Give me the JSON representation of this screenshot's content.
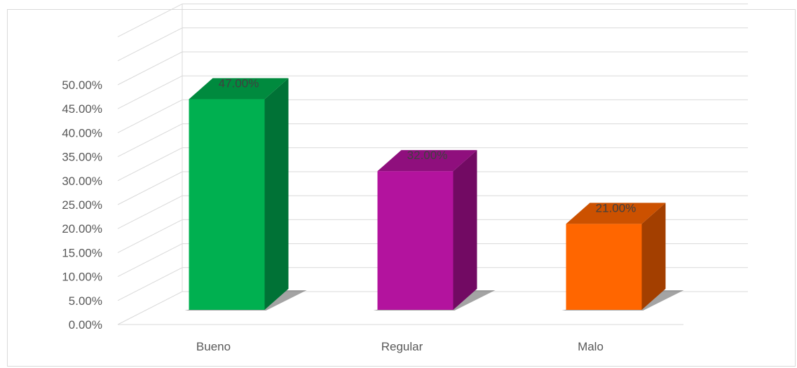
{
  "chart_data": {
    "type": "bar",
    "style": "3d-column",
    "categories": [
      "Bueno",
      "Regular",
      "Malo"
    ],
    "values": [
      47.0,
      32.0,
      21.0
    ],
    "data_labels": [
      "47.00%",
      "32.00%",
      "21.00%"
    ],
    "colors": {
      "front": [
        "#00b050",
        "#b3139e",
        "#ff6600"
      ],
      "side": [
        "#007236",
        "#720a63",
        "#a33f00"
      ],
      "top": [
        "#008a3e",
        "#8f0f7d",
        "#cc5100"
      ]
    },
    "y_ticks": [
      "0.00%",
      "5.00%",
      "10.00%",
      "15.00%",
      "20.00%",
      "25.00%",
      "30.00%",
      "35.00%",
      "40.00%",
      "45.00%",
      "50.00%"
    ],
    "ylim": [
      0,
      50
    ],
    "grid": true,
    "legend": "none",
    "title": "",
    "xlabel": "",
    "ylabel": ""
  }
}
